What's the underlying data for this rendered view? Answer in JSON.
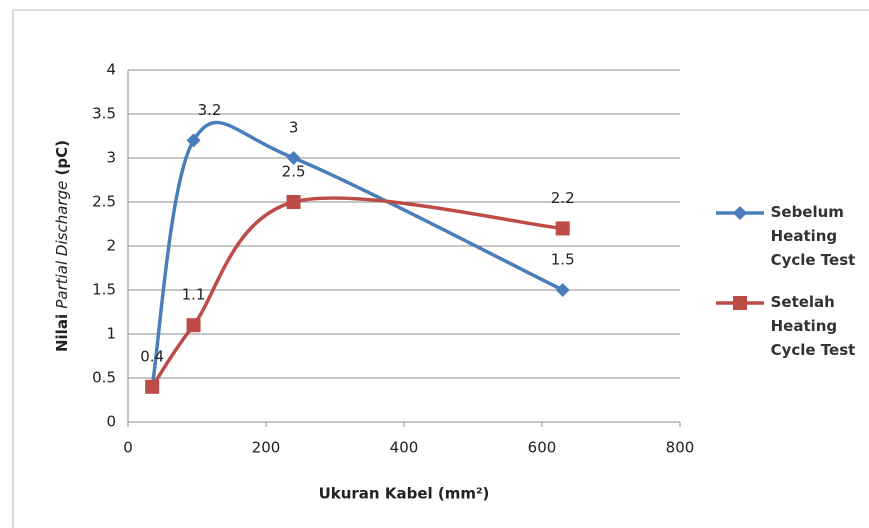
{
  "chart_data": {
    "type": "scatter-smooth",
    "ylabel": [
      "Nilai",
      "Partial Discharge",
      "(pC)"
    ],
    "xlabel": "Ukuran Kabel (mm²)",
    "xlim": [
      0,
      800
    ],
    "xticks": [
      0,
      200,
      400,
      600,
      800
    ],
    "ylim": [
      0,
      4
    ],
    "yticks": [
      0,
      0.5,
      1,
      1.5,
      2,
      2.5,
      3,
      3.5,
      4
    ],
    "grid": true,
    "legend": "right",
    "series": [
      {
        "name": "Sebelum Heating Cycle Test",
        "color": "#4a7ebb",
        "marker": "diamond",
        "x": [
          35,
          95,
          240,
          630
        ],
        "values": [
          0.4,
          3.2,
          3,
          1.5
        ]
      },
      {
        "name": "Setelah Heating Cycle Test",
        "color": "#be4b48",
        "marker": "square",
        "x": [
          35,
          95,
          240,
          630
        ],
        "values": [
          0.4,
          1.1,
          2.5,
          2.2
        ]
      }
    ]
  }
}
